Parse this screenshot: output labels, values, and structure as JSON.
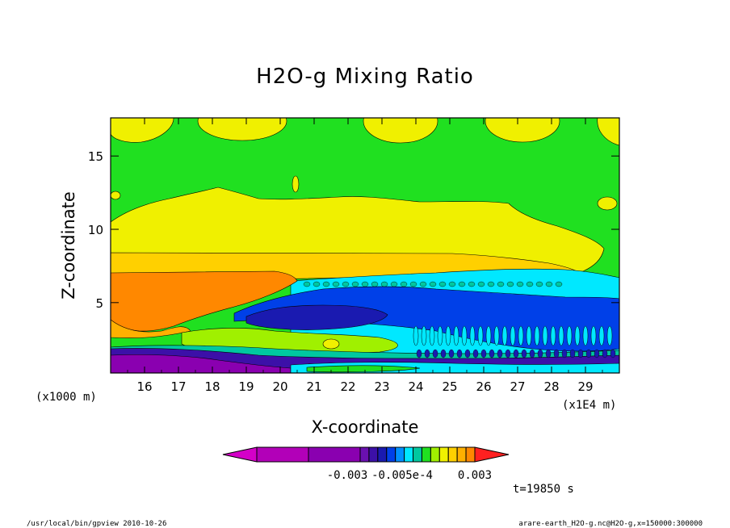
{
  "chart_data": {
    "type": "contour",
    "title": "H2O-g Mixing Ratio",
    "xlabel": "X-coordinate",
    "ylabel": "Z-coordinate",
    "x_unit": "(x1E4 m)",
    "y_unit": "(x1000 m)",
    "x_ticks": [
      16,
      17,
      18,
      19,
      20,
      21,
      22,
      23,
      24,
      25,
      26,
      27,
      28,
      29
    ],
    "y_ticks": [
      5,
      10,
      15
    ],
    "xlim": [
      15,
      30
    ],
    "ylim": [
      0.2,
      17.6
    ],
    "colorbar": {
      "labels": [
        "-0.003",
        "-0.005e-4",
        "0.003"
      ],
      "colors": [
        "#d400c8",
        "#b200b8",
        "#8a00b0",
        "#6a10b0",
        "#3c10a8",
        "#1a1ab0",
        "#0040e8",
        "#0090ff",
        "#00e8ff",
        "#00c8a0",
        "#20e020",
        "#a0f000",
        "#f0f000",
        "#ffd000",
        "#ffb000",
        "#ff8800",
        "#ff2020"
      ]
    },
    "time_label": "t=19850 s"
  },
  "footer": {
    "left": "/usr/local/bin/gpview  2010-10-26",
    "right": "arare-earth_H2O-g.nc@H2O-g,x=150000:300000"
  }
}
